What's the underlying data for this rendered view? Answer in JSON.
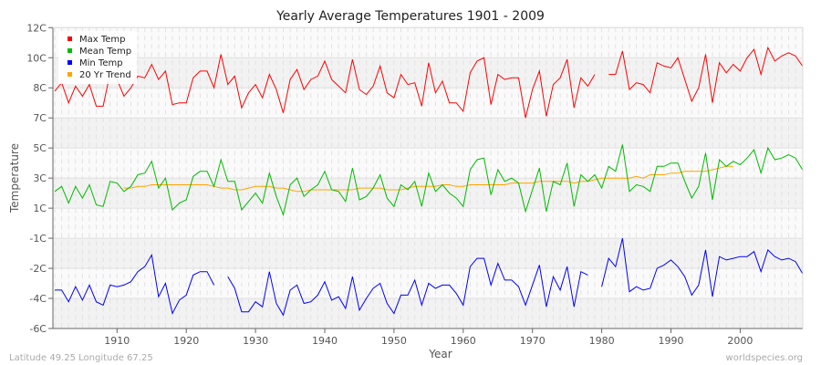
{
  "chart_data": {
    "type": "line",
    "title": "Yearly Average Temperatures 1901 - 2009",
    "xlabel": "Year",
    "ylabel": "Temperature",
    "xlim": [
      1901,
      2009
    ],
    "ylim": [
      -6,
      12
    ],
    "x_ticks": [
      1910,
      1920,
      1930,
      1940,
      1950,
      1960,
      1970,
      1980,
      1990,
      2000
    ],
    "y_ticks": [
      {
        "value": 12,
        "label": "12C"
      },
      {
        "value": 10.2,
        "label": "10C"
      },
      {
        "value": 8.4,
        "label": "8C"
      },
      {
        "value": 6.6,
        "label": "7C"
      },
      {
        "value": 4.8,
        "label": "5C"
      },
      {
        "value": 3.0,
        "label": "3C"
      },
      {
        "value": 1.2,
        "label": "1C"
      },
      {
        "value": -0.6,
        "label": "-1C"
      },
      {
        "value": -2.4,
        "label": "-2C"
      },
      {
        "value": -4.2,
        "label": "-4C"
      },
      {
        "value": -6,
        "label": "-6C"
      }
    ],
    "grid": true,
    "legend_position": "top-left",
    "x_start": 1901,
    "series": [
      {
        "name": "Max Temp",
        "color": "#ff0000",
        "values": [
          8.2,
          8.7,
          7.5,
          8.5,
          7.9,
          8.6,
          7.3,
          7.3,
          9.3,
          8.9,
          7.9,
          8.4,
          9.1,
          9.0,
          9.8,
          8.9,
          9.4,
          7.4,
          7.5,
          7.5,
          9.0,
          9.4,
          9.4,
          8.4,
          10.4,
          8.6,
          9.1,
          7.2,
          8.1,
          8.6,
          7.8,
          9.2,
          8.3,
          6.9,
          8.9,
          9.5,
          8.3,
          8.9,
          9.1,
          10.0,
          8.9,
          8.5,
          8.1,
          10.1,
          8.3,
          8.0,
          8.5,
          9.7,
          8.1,
          7.8,
          9.2,
          8.6,
          8.7,
          7.3,
          9.9,
          8.1,
          8.8,
          7.5,
          7.5,
          7.0,
          9.3,
          10.0,
          10.2,
          7.4,
          9.2,
          8.9,
          9.0,
          9.0,
          6.6,
          8.3,
          9.4,
          6.7,
          8.6,
          9.0,
          10.1,
          7.2,
          9.0,
          8.5,
          9.2,
          null,
          9.2,
          9.2,
          10.6,
          8.3,
          8.7,
          8.6,
          8.1,
          9.9,
          9.7,
          9.6,
          10.2,
          8.9,
          7.6,
          8.4,
          10.4,
          7.5,
          9.9,
          9.3,
          9.8,
          9.4,
          10.2,
          10.7,
          9.2,
          10.8,
          10.0,
          10.3,
          10.5,
          10.3,
          9.7
        ]
      },
      {
        "name": "Mean Temp",
        "color": "#00bb00",
        "values": [
          2.2,
          2.5,
          1.5,
          2.5,
          1.8,
          2.6,
          1.4,
          1.3,
          2.8,
          2.7,
          2.2,
          2.5,
          3.2,
          3.3,
          4.0,
          2.4,
          3.0,
          1.1,
          1.5,
          1.7,
          3.1,
          3.4,
          3.4,
          2.5,
          4.1,
          2.8,
          2.8,
          1.1,
          1.6,
          2.1,
          1.5,
          3.3,
          1.9,
          0.8,
          2.6,
          3.0,
          1.9,
          2.3,
          2.6,
          3.4,
          2.3,
          2.2,
          1.6,
          3.6,
          1.7,
          1.9,
          2.4,
          3.2,
          1.8,
          1.3,
          2.6,
          2.3,
          2.8,
          1.3,
          3.3,
          2.2,
          2.6,
          2.1,
          1.8,
          1.3,
          3.5,
          4.1,
          4.2,
          2.0,
          3.5,
          2.8,
          3.0,
          2.7,
          1.0,
          2.3,
          3.6,
          1.0,
          2.8,
          2.6,
          3.9,
          1.3,
          3.2,
          2.8,
          3.2,
          2.4,
          3.7,
          3.4,
          5.0,
          2.2,
          2.6,
          2.5,
          2.2,
          3.7,
          3.7,
          3.9,
          3.9,
          2.8,
          1.8,
          2.5,
          4.5,
          1.7,
          4.1,
          3.7,
          4.0,
          3.8,
          4.2,
          4.7,
          3.3,
          4.8,
          4.1,
          4.2,
          4.4,
          4.2,
          3.5
        ]
      },
      {
        "name": "Min Temp",
        "color": "#0000ff",
        "values": [
          -3.7,
          -3.7,
          -4.4,
          -3.5,
          -4.3,
          -3.4,
          -4.4,
          -4.6,
          -3.4,
          -3.5,
          -3.4,
          -3.2,
          -2.6,
          -2.3,
          -1.6,
          -4.1,
          -3.3,
          -5.1,
          -4.3,
          -4.0,
          -2.8,
          -2.6,
          -2.6,
          -3.4,
          null,
          -2.9,
          -3.6,
          -5.0,
          -5.0,
          -4.4,
          -4.7,
          -2.6,
          -4.5,
          -5.2,
          -3.7,
          -3.4,
          -4.5,
          -4.4,
          -4.0,
          -3.2,
          -4.3,
          -4.1,
          -4.8,
          -2.9,
          -4.9,
          -4.2,
          -3.6,
          -3.3,
          -4.5,
          -5.1,
          -4.0,
          -4.0,
          -3.1,
          -4.6,
          -3.3,
          -3.6,
          -3.4,
          -3.4,
          -3.9,
          -4.6,
          -2.3,
          -1.8,
          -1.8,
          -3.4,
          -2.1,
          -3.1,
          -3.1,
          -3.5,
          -4.6,
          -3.4,
          -2.2,
          -4.7,
          -2.9,
          -3.7,
          -2.3,
          -4.7,
          -2.6,
          -2.8,
          null,
          -3.5,
          -1.8,
          -2.3,
          -0.6,
          -3.8,
          -3.5,
          -3.7,
          -3.6,
          -2.4,
          -2.2,
          -1.9,
          -2.3,
          -2.9,
          -4.0,
          -3.4,
          -1.3,
          -4.1,
          -1.7,
          -1.9,
          -1.8,
          -1.7,
          -1.7,
          -1.4,
          -2.6,
          -1.3,
          -1.7,
          -1.9,
          -1.8,
          -2.0,
          -2.7
        ]
      },
      {
        "name": "20 Yr Trend",
        "color": "#ffa500",
        "values": [
          null,
          null,
          null,
          null,
          null,
          null,
          null,
          null,
          null,
          null,
          2.4,
          2.4,
          2.5,
          2.5,
          2.6,
          2.6,
          2.6,
          2.6,
          2.6,
          2.6,
          2.6,
          2.6,
          2.6,
          2.5,
          2.4,
          2.4,
          2.3,
          2.3,
          2.4,
          2.5,
          2.5,
          2.5,
          2.4,
          2.4,
          2.3,
          2.2,
          2.2,
          2.3,
          2.3,
          2.3,
          2.3,
          2.3,
          2.3,
          2.3,
          2.4,
          2.4,
          2.4,
          2.4,
          2.3,
          2.3,
          2.3,
          2.4,
          2.5,
          2.5,
          2.5,
          2.5,
          2.6,
          2.6,
          2.5,
          2.5,
          2.6,
          2.6,
          2.6,
          2.6,
          2.6,
          2.6,
          2.7,
          2.7,
          2.7,
          2.7,
          2.8,
          2.8,
          2.8,
          2.8,
          2.8,
          2.7,
          2.8,
          2.8,
          2.9,
          3.0,
          3.0,
          3.0,
          3.0,
          3.0,
          3.1,
          3.0,
          3.2,
          3.2,
          3.2,
          3.3,
          3.3,
          3.4,
          3.4,
          3.4,
          3.4,
          3.5,
          3.6,
          3.7,
          3.7,
          null,
          null,
          null,
          null,
          null,
          null,
          null,
          null,
          null,
          null
        ]
      }
    ]
  },
  "footer": {
    "location": "Latitude 49.25 Longitude 67.25",
    "source": "worldspecies.org"
  }
}
